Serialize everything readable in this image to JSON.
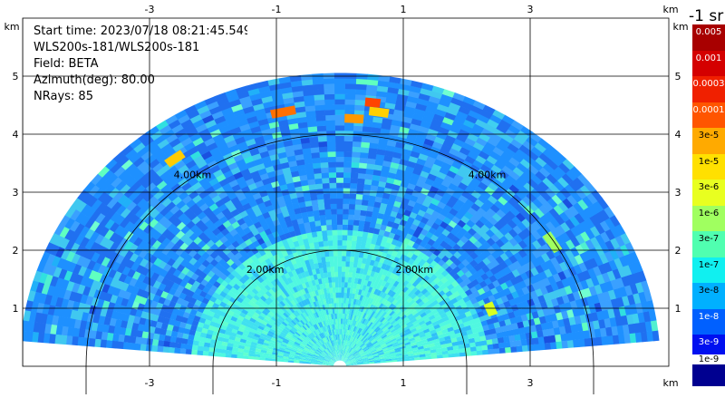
{
  "info": {
    "start_time": "Start time: 2023/07/18 08:21:45.549",
    "instrument": "WLS200s-181/WLS200s-181",
    "field": "Field: BETA",
    "azimuth": "Azimuth(deg): 80.00",
    "nrays": "NRays: 85"
  },
  "axes": {
    "unit": "km",
    "x_ticks": [
      "-3",
      "-1",
      "1",
      "3"
    ],
    "x_tick_values": [
      -3,
      -1,
      1,
      3
    ],
    "y_ticks": [
      "1",
      "2",
      "3",
      "4",
      "5"
    ],
    "y_tick_values": [
      1,
      2,
      3,
      4,
      5
    ],
    "x_range": [
      -5.9,
      4.1
    ],
    "y_range": [
      0,
      6
    ]
  },
  "range_rings": {
    "labels": [
      "4.00km",
      "4.00km",
      "2.00km",
      "2.00km"
    ],
    "radii_km": [
      2,
      4
    ]
  },
  "colorbar": {
    "title": "-1 sr",
    "labels": [
      "0.005",
      "0.001",
      "0.0003",
      "0.0001",
      "3e-5",
      "1e-5",
      "3e-6",
      "1e-6",
      "3e-7",
      "1e-7",
      "3e-8",
      "1e-8",
      "3e-9",
      "1e-9"
    ],
    "colors": [
      "#a80000",
      "#d40000",
      "#f02000",
      "#ff5500",
      "#ffaa00",
      "#ffe000",
      "#e8ff20",
      "#a0ff60",
      "#50ffb0",
      "#10f0f0",
      "#00b0ff",
      "#0060ff",
      "#0010f0",
      "#000090"
    ]
  },
  "chart_data": {
    "type": "heatmap",
    "title": "",
    "xlabel": "km",
    "ylabel": "km",
    "xlim": [
      -5.9,
      4.1
    ],
    "ylim": [
      0,
      6
    ],
    "max_range_km": 5.0,
    "field": "BETA",
    "elevation_span_deg": [
      5,
      175
    ]
  }
}
